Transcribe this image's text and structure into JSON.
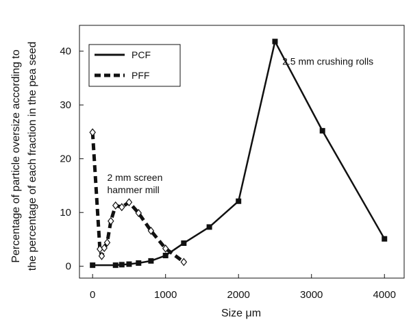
{
  "chart_data": {
    "type": "line",
    "xlabel": "Size μm",
    "ylabel_lines": [
      "Percentage of particle oversize according to",
      "the percentage of each fraction in the pea seed"
    ],
    "xlim": [
      -180,
      4270
    ],
    "ylim": [
      -2.2,
      44.8
    ],
    "x_ticks": [
      0,
      1000,
      2000,
      3000,
      4000
    ],
    "y_ticks": [
      0,
      10,
      20,
      30,
      40
    ],
    "grid": false,
    "legend_position": "top-left",
    "series": [
      {
        "name": "PCF",
        "line": "solid",
        "marker": "filled-square",
        "color": "#111111",
        "x": [
          0,
          315,
          400,
          500,
          630,
          800,
          1000,
          1250,
          1600,
          2000,
          2500,
          3150,
          4000
        ],
        "y": [
          0.2,
          0.2,
          0.3,
          0.4,
          0.6,
          1.0,
          2.0,
          4.3,
          7.3,
          12.1,
          41.8,
          25.2,
          5.1
        ]
      },
      {
        "name": "PFF",
        "line": "dashed",
        "marker": "open-diamond",
        "color": "#111111",
        "x": [
          0,
          100,
          125,
          160,
          200,
          250,
          315,
          400,
          500,
          630,
          800,
          1000,
          1250
        ],
        "y": [
          24.9,
          3.2,
          1.9,
          3.4,
          4.4,
          8.4,
          11.3,
          11.0,
          11.9,
          9.9,
          6.6,
          3.3,
          0.8
        ]
      }
    ],
    "annotations": [
      {
        "text": "2.5 mm crushing rolls",
        "x": 2600,
        "y": 37.5
      },
      {
        "text": "2 mm screen",
        "x": 200,
        "y": 15.9
      },
      {
        "text": "hammer mill",
        "x": 200,
        "y": 13.6
      }
    ]
  }
}
